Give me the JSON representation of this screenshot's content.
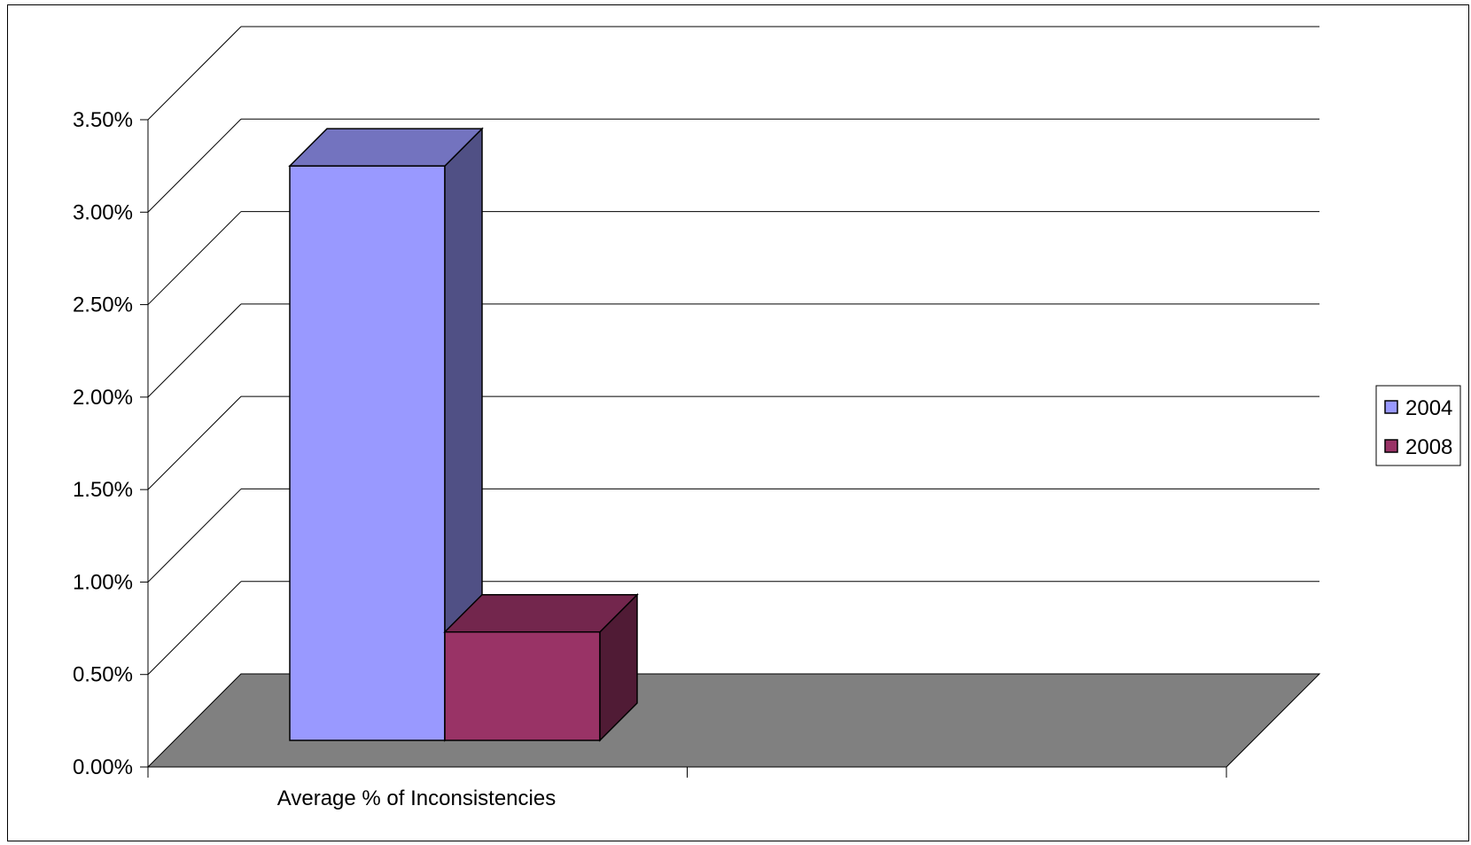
{
  "chart_data": {
    "type": "bar",
    "title": "",
    "xlabel": "",
    "ylabel": "",
    "categories": [
      "Average % of Inconsistencies"
    ],
    "series": [
      {
        "name": "2004",
        "values": [
          3.25
        ],
        "color": "#9999FF"
      },
      {
        "name": "2008",
        "values": [
          0.73
        ],
        "color": "#993366"
      }
    ],
    "ylim": [
      0,
      3.5
    ],
    "y_ticks": [
      "0.00%",
      "0.50%",
      "1.00%",
      "1.50%",
      "2.00%",
      "2.50%",
      "3.00%",
      "3.50%"
    ],
    "grid": true,
    "three_d": true,
    "floor_color": "#808080",
    "legend_position": "right"
  }
}
